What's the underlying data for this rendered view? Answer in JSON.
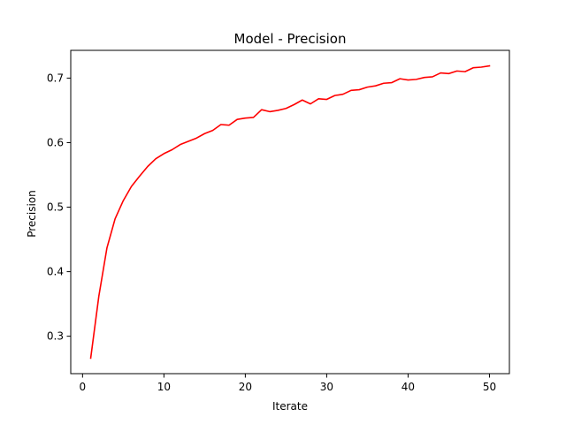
{
  "chart_data": {
    "type": "line",
    "title": "Model - Precision",
    "xlabel": "Iterate",
    "ylabel": "Precision",
    "xlim": [
      -1.45,
      52.45
    ],
    "ylim": [
      0.242,
      0.743
    ],
    "xticks": [
      0,
      10,
      20,
      30,
      40,
      50
    ],
    "yticks": [
      0.3,
      0.4,
      0.5,
      0.6,
      0.7
    ],
    "xtick_labels": [
      "0",
      "10",
      "20",
      "30",
      "40",
      "50"
    ],
    "ytick_labels": [
      "0.3",
      "0.4",
      "0.5",
      "0.6",
      "0.7"
    ],
    "grid": false,
    "legend": null,
    "series": [
      {
        "color": "#ff0000",
        "x": [
          1,
          2,
          3,
          4,
          5,
          6,
          7,
          8,
          9,
          10,
          11,
          12,
          13,
          14,
          15,
          16,
          17,
          18,
          19,
          20,
          21,
          22,
          23,
          24,
          25,
          26,
          27,
          28,
          29,
          30,
          31,
          32,
          33,
          34,
          35,
          36,
          37,
          38,
          39,
          40,
          41,
          42,
          43,
          44,
          45,
          46,
          47,
          48,
          49,
          50
        ],
        "y": [
          0.266,
          0.362,
          0.437,
          0.482,
          0.51,
          0.532,
          0.548,
          0.563,
          0.575,
          0.583,
          0.589,
          0.597,
          0.602,
          0.607,
          0.614,
          0.619,
          0.628,
          0.627,
          0.636,
          0.638,
          0.639,
          0.651,
          0.648,
          0.65,
          0.653,
          0.659,
          0.666,
          0.66,
          0.668,
          0.667,
          0.673,
          0.675,
          0.681,
          0.682,
          0.686,
          0.688,
          0.692,
          0.693,
          0.699,
          0.697,
          0.698,
          0.701,
          0.702,
          0.708,
          0.707,
          0.711,
          0.71,
          0.716,
          0.717,
          0.719
        ]
      }
    ]
  }
}
